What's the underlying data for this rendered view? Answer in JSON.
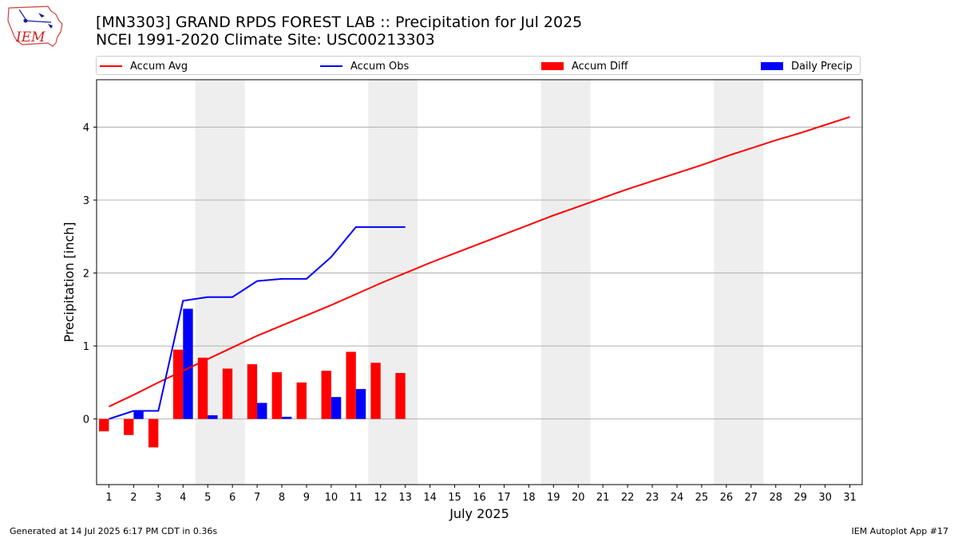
{
  "header": {
    "title_line1": "[MN3303] GRAND RPDS FOREST LAB :: Precipitation for Jul 2025",
    "title_line2": "NCEI 1991-2020 Climate Site: USC00213303",
    "logo_text": "IEM"
  },
  "footer": {
    "generated": "Generated at 14 Jul 2025 6:17 PM CDT in 0.36s",
    "app": "IEM Autoplot App #17"
  },
  "chart_data": {
    "type": "bar",
    "xlabel": "July 2025",
    "ylabel": "Precipitation [inch]",
    "categories": [
      1,
      2,
      3,
      4,
      5,
      6,
      7,
      8,
      9,
      10,
      11,
      12,
      13,
      14,
      15,
      16,
      17,
      18,
      19,
      20,
      21,
      22,
      23,
      24,
      25,
      26,
      27,
      28,
      29,
      30,
      31
    ],
    "xlim": [
      0.5,
      31.5
    ],
    "ylim": [
      -0.9,
      4.65
    ],
    "yticks": [
      0,
      1,
      2,
      3,
      4
    ],
    "grid": "horizontal",
    "legend_position": "top",
    "weekend_shading": [
      [
        4.5,
        6.5
      ],
      [
        11.5,
        13.5
      ],
      [
        18.5,
        20.5
      ],
      [
        25.5,
        27.5
      ]
    ],
    "series": [
      {
        "name": "Accum Avg",
        "kind": "line",
        "color": "#ff0000",
        "x": [
          1,
          2,
          3,
          4,
          5,
          6,
          7,
          8,
          9,
          10,
          11,
          12,
          13,
          14,
          15,
          16,
          17,
          18,
          19,
          20,
          21,
          22,
          23,
          24,
          25,
          26,
          27,
          28,
          29,
          30,
          31
        ],
        "values": [
          0.17,
          0.33,
          0.5,
          0.66,
          0.82,
          0.98,
          1.14,
          1.28,
          1.42,
          1.56,
          1.71,
          1.86,
          2.0,
          2.14,
          2.27,
          2.4,
          2.53,
          2.66,
          2.79,
          2.91,
          3.03,
          3.15,
          3.26,
          3.37,
          3.48,
          3.6,
          3.71,
          3.82,
          3.92,
          4.03,
          4.14
        ]
      },
      {
        "name": "Accum Obs",
        "kind": "line",
        "color": "#0000ff",
        "x": [
          1,
          2,
          3,
          4,
          5,
          6,
          7,
          8,
          9,
          10,
          11,
          12,
          13
        ],
        "values": [
          0.0,
          0.11,
          0.11,
          1.62,
          1.67,
          1.67,
          1.89,
          1.92,
          1.92,
          2.22,
          2.63,
          2.63,
          2.63
        ]
      },
      {
        "name": "Accum Diff",
        "kind": "bar",
        "color": "#ff0000",
        "x": [
          1,
          2,
          3,
          4,
          5,
          6,
          7,
          8,
          9,
          10,
          11,
          12,
          13
        ],
        "values": [
          -0.17,
          -0.22,
          -0.39,
          0.95,
          0.84,
          0.69,
          0.75,
          0.64,
          0.5,
          0.66,
          0.92,
          0.77,
          0.63
        ]
      },
      {
        "name": "Daily Precip",
        "kind": "bar",
        "color": "#0000ff",
        "x": [
          1,
          2,
          3,
          4,
          5,
          6,
          7,
          8,
          9,
          10,
          11,
          12,
          13
        ],
        "values": [
          0.0,
          0.11,
          0.0,
          1.51,
          0.05,
          0.0,
          0.22,
          0.03,
          0.0,
          0.3,
          0.41,
          0.0,
          0.0
        ]
      }
    ]
  }
}
